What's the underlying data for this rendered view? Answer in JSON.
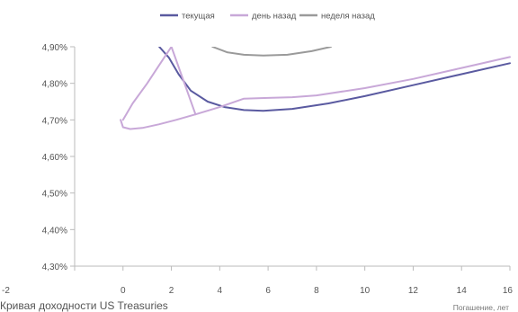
{
  "chart_data": {
    "type": "line",
    "caption": "Кривая доходности US Treasuries",
    "xlabel": "Погашение, лет",
    "ylabel": "",
    "xlim": [
      -2,
      16
    ],
    "ylim": [
      4.3,
      4.9
    ],
    "x_ticks": [
      "-2",
      "0",
      "2",
      "4",
      "6",
      "8",
      "10",
      "12",
      "14",
      "16"
    ],
    "y_ticks": [
      "4,30%",
      "4,40%",
      "4,50%",
      "4,60%",
      "4,70%",
      "4,80%",
      "4,90%"
    ],
    "grid": false,
    "legend_position": "top-center",
    "series": [
      {
        "name": "текущая",
        "color": "#5a5aa0",
        "x": [
          1.5,
          1.9,
          2.3,
          2.8,
          3.5,
          4.2,
          5.0,
          5.8,
          7.0,
          8.5,
          10.0,
          12.0,
          14.0,
          16.0
        ],
        "y": [
          4.9,
          4.87,
          4.825,
          4.78,
          4.75,
          4.735,
          4.727,
          4.725,
          4.73,
          4.745,
          4.765,
          4.795,
          4.825,
          4.855
        ]
      },
      {
        "name": "день назад",
        "color": "#c8a8d8",
        "x": [
          0.0,
          0.4,
          1.0,
          1.5,
          2.0,
          3.0,
          4.0,
          5.0,
          6.0,
          7.0,
          8.0,
          10.0,
          12.0,
          14.0,
          16.0
        ],
        "y": [
          4.7,
          4.745,
          4.8,
          4.85,
          4.9,
          4.715,
          4.735,
          4.758,
          4.76,
          4.762,
          4.767,
          4.787,
          4.812,
          4.842,
          4.872
        ],
        "second_segment": {
          "x": [
            -0.1,
            0.0,
            0.3,
            0.8,
            1.5,
            2.2,
            3.0
          ],
          "y": [
            4.7,
            4.68,
            4.675,
            4.678,
            4.688,
            4.7,
            4.715
          ]
        }
      },
      {
        "name": "неделя назад",
        "color": "#9a9a9a",
        "x": [
          3.7,
          4.3,
          5.0,
          5.8,
          6.8,
          7.8,
          8.6
        ],
        "y": [
          4.9,
          4.885,
          4.878,
          4.876,
          4.878,
          4.888,
          4.9
        ]
      }
    ]
  }
}
